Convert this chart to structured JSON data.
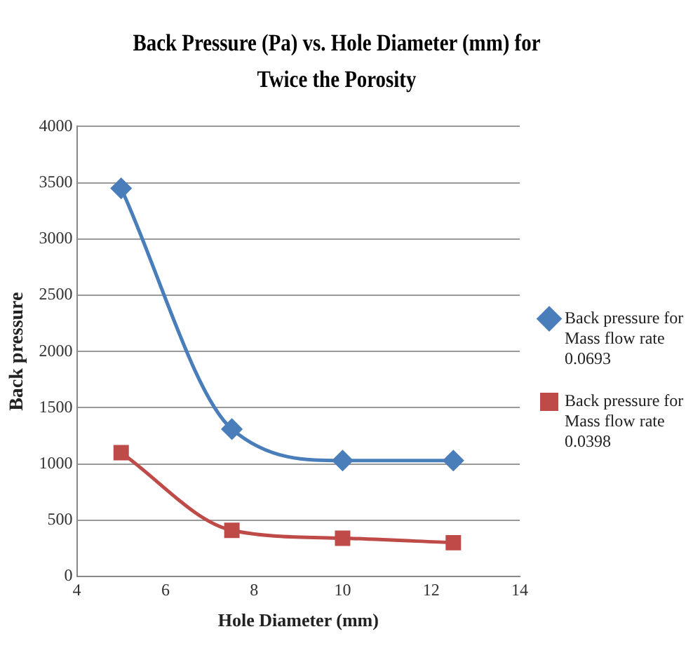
{
  "chart_data": {
    "type": "line",
    "title": "Back Pressure (Pa) vs. Hole Diameter (mm) for Twice the Porosity",
    "xlabel": "Hole Diameter (mm)",
    "ylabel": "Back pressure",
    "x": [
      5,
      7.5,
      10,
      12.5
    ],
    "series": [
      {
        "name": "Back pressure for Mass flow rate 0.0693",
        "color": "#4a7ebb",
        "marker": "diamond",
        "values": [
          3450,
          1310,
          1030,
          1030
        ]
      },
      {
        "name": "Back pressure for Mass flow rate 0.0398",
        "color": "#be4b48",
        "marker": "square",
        "values": [
          1100,
          410,
          340,
          300
        ]
      }
    ],
    "xlim": [
      4,
      14
    ],
    "xticks": [
      4,
      6,
      8,
      10,
      12,
      14
    ],
    "ylim": [
      0,
      4000
    ],
    "yticks": [
      0,
      500,
      1000,
      1500,
      2000,
      2500,
      3000,
      3500,
      4000
    ],
    "grid": "y",
    "legend": "right",
    "line_style": "solid"
  }
}
